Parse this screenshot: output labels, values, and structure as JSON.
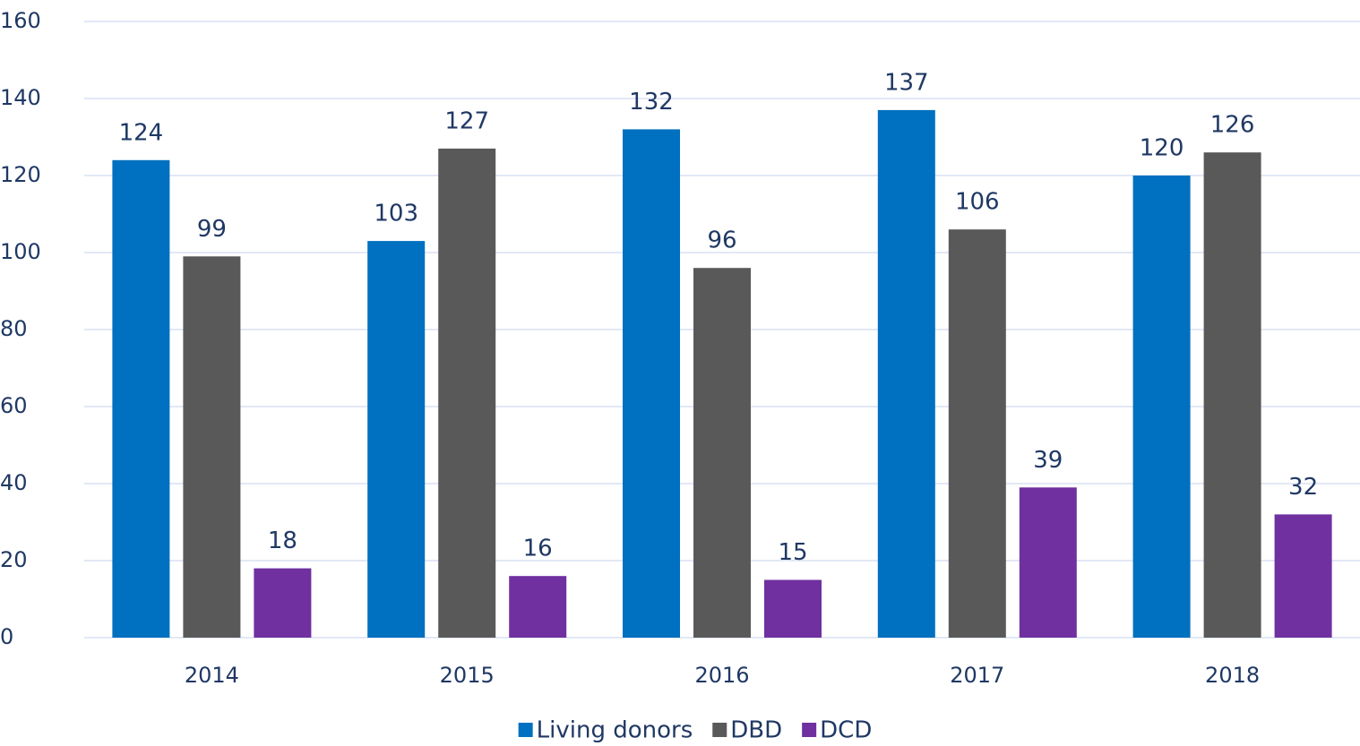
{
  "chart_data": {
    "type": "bar",
    "categories": [
      "2014",
      "2015",
      "2016",
      "2017",
      "2018"
    ],
    "series": [
      {
        "name": "Living donors",
        "color": "#0070c0",
        "values": [
          124,
          103,
          132,
          137,
          120
        ]
      },
      {
        "name": "DBD",
        "color": "#595959",
        "values": [
          99,
          127,
          96,
          106,
          126
        ]
      },
      {
        "name": "DCD",
        "color": "#7030a0",
        "values": [
          18,
          16,
          15,
          39,
          32
        ]
      }
    ],
    "ylim": [
      0,
      160
    ],
    "yticks": [
      0,
      20,
      40,
      60,
      80,
      100,
      120,
      140,
      160
    ],
    "grid": true,
    "legend": "bottom"
  }
}
